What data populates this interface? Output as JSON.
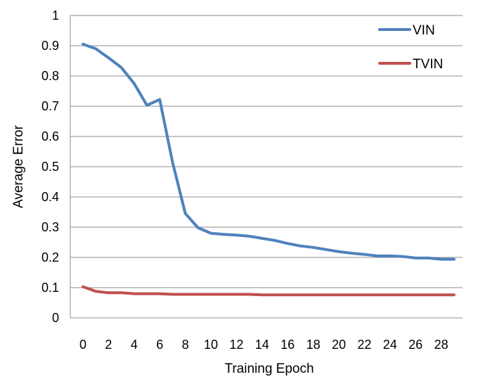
{
  "chart_data": {
    "type": "line",
    "title": "",
    "xlabel": "Training Epoch",
    "ylabel": "Average Error",
    "xlim": [
      0,
      29
    ],
    "ylim": [
      0,
      1
    ],
    "x_ticks": [
      0,
      2,
      4,
      6,
      8,
      10,
      12,
      14,
      16,
      18,
      20,
      22,
      24,
      26,
      28
    ],
    "y_ticks": [
      0,
      0.1,
      0.2,
      0.3,
      0.4,
      0.5,
      0.6,
      0.7,
      0.8,
      0.9,
      1
    ],
    "y_tick_labels": [
      "0",
      "0.1",
      "0.2",
      "0.3",
      "0.4",
      "0.5",
      "0.6",
      "0.7",
      "0.8",
      "0.9",
      "1"
    ],
    "grid": "horizontal",
    "legend_position": "top-right",
    "x": [
      0,
      1,
      2,
      3,
      4,
      5,
      6,
      7,
      8,
      9,
      10,
      11,
      12,
      13,
      14,
      15,
      16,
      17,
      18,
      19,
      20,
      21,
      22,
      23,
      24,
      25,
      26,
      27,
      28,
      29
    ],
    "series": [
      {
        "name": "VIN",
        "color": "#4f81bd",
        "values": [
          0.905,
          0.89,
          0.86,
          0.828,
          0.775,
          0.703,
          0.722,
          0.515,
          0.345,
          0.298,
          0.28,
          0.276,
          0.274,
          0.27,
          0.263,
          0.256,
          0.246,
          0.238,
          0.233,
          0.226,
          0.219,
          0.214,
          0.21,
          0.205,
          0.205,
          0.203,
          0.198,
          0.198,
          0.194,
          0.194
        ]
      },
      {
        "name": "TVIN",
        "color": "#c0504d",
        "values": [
          0.103,
          0.088,
          0.083,
          0.083,
          0.08,
          0.08,
          0.08,
          0.078,
          0.078,
          0.078,
          0.078,
          0.078,
          0.078,
          0.078,
          0.076,
          0.076,
          0.076,
          0.076,
          0.076,
          0.076,
          0.076,
          0.076,
          0.076,
          0.076,
          0.076,
          0.076,
          0.076,
          0.076,
          0.076,
          0.076
        ]
      }
    ]
  }
}
